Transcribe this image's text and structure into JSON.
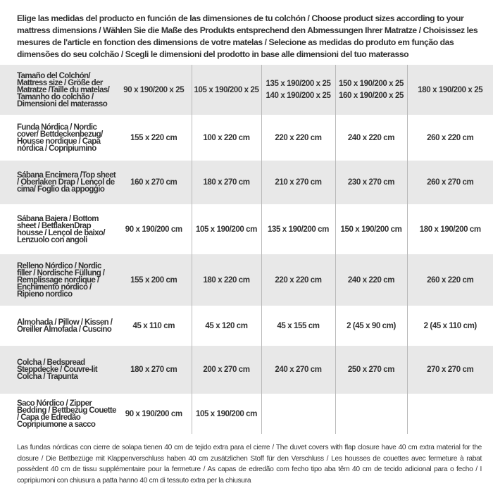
{
  "intro": "Elige las medidas del producto en función de las dimensiones de tu colchón / Choose product sizes according to your mattress dimensions / Wählen Sie die Maße des Produkts entsprechend den Abmessungen Ihrer Matratze / Choisissez les mesures de l'article en fonction des dimensions de votre matelas / Selecione as medidas do produto em função das dimensões do seu colchão / Scegli le dimensioni del prodotto in base alle dimensioni del tuo materasso",
  "table": {
    "header": {
      "label": "Tamaño del Colchón/ Mattress size / Größe der Matratze /Taille du matelas/ Tamanho do colchão / Dimensioni del materasso",
      "cells": [
        [
          "90 x 190/200 x 25"
        ],
        [
          "105 x 190/200 x 25"
        ],
        [
          "135 x 190/200 x 25",
          "140 x 190/200 x 25"
        ],
        [
          "150 x 190/200 x 25",
          "160 x 190/200 x 25"
        ],
        [
          "180 x 190/200 x 25"
        ]
      ]
    },
    "rows": [
      {
        "label": "Funda Nórdica /  Nordic cover/ Bettdeckenbezug/ Housse nordique  / Capa nórdica / Copripiumino",
        "cells": [
          "155 x 220 cm",
          "100 x 220 cm",
          "220 x 220 cm",
          "240 x 220 cm",
          "260 x 220 cm"
        ]
      },
      {
        "label": "Sábana Encimera /Top sheet / Oberlaken Drap / Lençol de cima/ Foglio da appoggio",
        "cells": [
          "160 x 270 cm",
          "180 x 270 cm",
          "210 x 270 cm",
          "230 x 270 cm",
          "260 x 270 cm"
        ]
      },
      {
        "label": "Sábana Bajera / Bottom sheet / BettlakenDrap housse / Lençol de baixo/ Lenzuolo con angoli",
        "cells": [
          "90 x 190/200 cm",
          "105 x 190/200 cm",
          "135 x 190/200 cm",
          "150 x 190/200 cm",
          "180 x 190/200 cm"
        ]
      },
      {
        "label": "Relleno Nórdico / Nordic filler / Nordische Füllung / Remplissage nordique / Enchimento nórdico / Ripieno nordico",
        "cells": [
          "155 x 200 cm",
          "180 x 220 cm",
          "220 x 220 cm",
          "240 x 220 cm",
          "260 x 220 cm"
        ]
      },
      {
        "label": "Almohada  / Pillow / Kissen / Oreiller Almofada / Cuscino",
        "cells": [
          "45 x 110 cm",
          "45 x 120 cm",
          "45 x 155 cm",
          "2 (45 x 90 cm)",
          "2 (45 x 110 cm)"
        ]
      },
      {
        "label": "Colcha / Bedspread Steppdecke / Couvre-lit Colcha / Trapunta",
        "cells": [
          "180 x 270 cm",
          "200 x 270 cm",
          "240 x 270 cm",
          "250 x 270 cm",
          "270 x 270 cm"
        ]
      },
      {
        "label": "Saco Nórdico / Zipper Bedding / Bettbezug Couette  / Capa de Edredão Copripiumone a sacco",
        "cells": [
          "90 x 190/200 cm",
          "105 x 190/200 cm",
          "",
          "",
          ""
        ]
      }
    ]
  },
  "footnote": "Las fundas nórdicas con cierre de solapa tienen 40 cm de tejido extra para el cierre  / The duvet covers with flap closure have 40 cm extra material for the closure / Die Bettbezüge mit Klappenverschluss haben 40 cm zusätzlichen Stoff für den Verschluss / Les housses de couettes avec fermeture à rabat possèdent 40 cm de tissu supplémentaire pour la fermeture / As capas de edredão com fecho tipo aba têm 40 cm de tecido adicional para o fecho / I copripiumoni con chiusura a patta hanno 40 cm di tessuto extra per la chiusura",
  "colors": {
    "row_alt": "#e8e8e8",
    "divider": "#b9b9b9",
    "text": "#333333"
  }
}
